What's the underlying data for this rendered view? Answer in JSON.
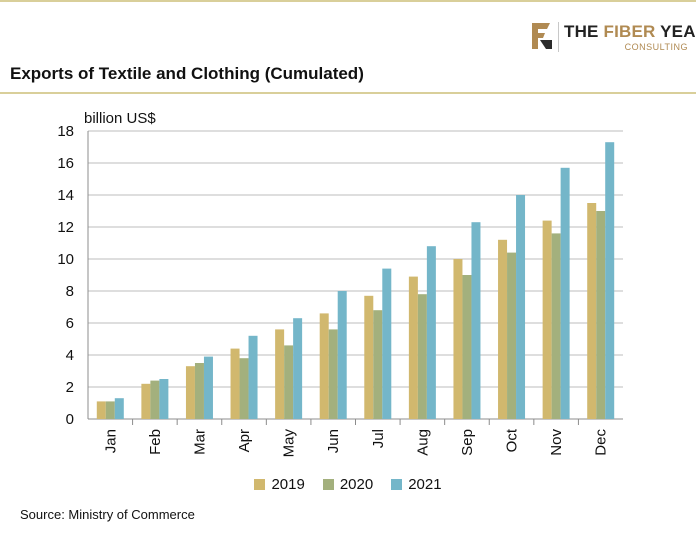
{
  "brand": {
    "name_part1": "THE ",
    "name_accent": "FIBER",
    "name_part2": " YEAR",
    "sub": "CONSULTING",
    "accent_color": "#b08a52"
  },
  "title": "Exports of Textile and Clothing (Cumulated)",
  "unit_label": "billion US$",
  "source": "Source: Ministry of Commerce",
  "chart_data": {
    "type": "bar",
    "categories": [
      "Jan",
      "Feb",
      "Mar",
      "Apr",
      "May",
      "Jun",
      "Jul",
      "Aug",
      "Sep",
      "Oct",
      "Nov",
      "Dec"
    ],
    "series": [
      {
        "name": "2019",
        "color": "#d1b86e",
        "values": [
          1.1,
          2.2,
          3.3,
          4.4,
          5.6,
          6.6,
          7.7,
          8.9,
          10.0,
          11.2,
          12.4,
          13.5
        ]
      },
      {
        "name": "2020",
        "color": "#a3b07d",
        "values": [
          1.1,
          2.4,
          3.5,
          3.8,
          4.6,
          5.6,
          6.8,
          7.8,
          9.0,
          10.4,
          11.6,
          13.0
        ]
      },
      {
        "name": "2021",
        "color": "#74b6c9",
        "values": [
          1.3,
          2.5,
          3.9,
          5.2,
          6.3,
          8.0,
          9.4,
          10.8,
          12.3,
          14.0,
          15.7,
          17.3
        ]
      }
    ],
    "ylim": [
      0,
      18
    ],
    "yticks": [
      0,
      2,
      4,
      6,
      8,
      10,
      12,
      14,
      16,
      18
    ],
    "ylabel": "billion US$",
    "grid": true,
    "legend_position": "bottom"
  }
}
